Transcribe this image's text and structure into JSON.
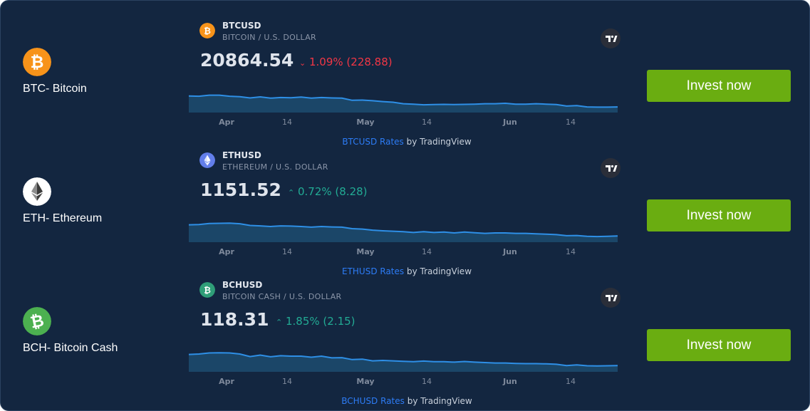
{
  "rows": [
    {
      "coin_label": "BTC- Bitcoin",
      "coin_icon": "bitcoin-icon",
      "symbol": "BTCUSD",
      "description": "BITCOIN / U.S. DOLLAR",
      "price": "20864.54",
      "change_arrow": "⌄",
      "change": "1.09% (228.88)",
      "direction": "down",
      "attr_link": "BTCUSD Rates",
      "attr_text": " by TradingView",
      "button": "Invest now",
      "axis_labels": [
        "Apr",
        "14",
        "May",
        "14",
        "Jun",
        "14"
      ],
      "trend": [
        0.46,
        0.47,
        0.42,
        0.42,
        0.47,
        0.49,
        0.55,
        0.5,
        0.56,
        0.53,
        0.54,
        0.51,
        0.56,
        0.53,
        0.55,
        0.56,
        0.66,
        0.65,
        0.68,
        0.72,
        0.75,
        0.82,
        0.84,
        0.87,
        0.86,
        0.85,
        0.86,
        0.85,
        0.84,
        0.82,
        0.82,
        0.8,
        0.84,
        0.84,
        0.82,
        0.84,
        0.86,
        0.93,
        0.91,
        0.97,
        0.98,
        0.98,
        0.97
      ]
    },
    {
      "coin_label": "ETH- Ethereum",
      "coin_icon": "ethereum-icon",
      "symbol": "ETHUSD",
      "description": "ETHEREUM / U.S. DOLLAR",
      "price": "1151.52",
      "change_arrow": "⌃",
      "change": "0.72% (8.28)",
      "direction": "up",
      "attr_link": "ETHUSD Rates",
      "attr_text": " by TradingView",
      "button": "Invest now",
      "axis_labels": [
        "Apr",
        "14",
        "May",
        "14",
        "Jun",
        "14"
      ],
      "trend": [
        0.42,
        0.41,
        0.36,
        0.35,
        0.34,
        0.37,
        0.45,
        0.47,
        0.5,
        0.47,
        0.48,
        0.5,
        0.53,
        0.5,
        0.52,
        0.53,
        0.6,
        0.62,
        0.67,
        0.7,
        0.72,
        0.74,
        0.78,
        0.74,
        0.78,
        0.76,
        0.8,
        0.76,
        0.79,
        0.82,
        0.8,
        0.8,
        0.82,
        0.82,
        0.84,
        0.86,
        0.88,
        0.93,
        0.92,
        0.96,
        0.97,
        0.96,
        0.94
      ]
    },
    {
      "coin_label": "BCH- Bitcoin Cash",
      "coin_icon": "bitcoin-cash-icon",
      "symbol": "BCHUSD",
      "description": "BITCOIN CASH / U.S. DOLLAR",
      "price": "118.31",
      "change_arrow": "⌃",
      "change": "1.85% (2.15)",
      "direction": "up",
      "attr_link": "BCHUSD Rates",
      "attr_text": " by TradingView",
      "button": "Invest now",
      "axis_labels": [
        "Apr",
        "14",
        "May",
        "14",
        "Jun",
        "14"
      ],
      "trend": [
        0.42,
        0.4,
        0.35,
        0.34,
        0.35,
        0.4,
        0.52,
        0.45,
        0.53,
        0.48,
        0.5,
        0.5,
        0.55,
        0.5,
        0.58,
        0.57,
        0.66,
        0.64,
        0.72,
        0.7,
        0.72,
        0.74,
        0.76,
        0.73,
        0.76,
        0.76,
        0.78,
        0.75,
        0.78,
        0.8,
        0.82,
        0.82,
        0.84,
        0.85,
        0.85,
        0.86,
        0.88,
        0.94,
        0.91,
        0.95,
        0.96,
        0.95,
        0.94
      ]
    }
  ],
  "colors": {
    "background": "#132640",
    "button": "#6aad11",
    "up": "#22ab94",
    "down": "#f23645",
    "link": "#2d7cf6",
    "line": "#2e8fe6",
    "area": "#1b4668",
    "bitcoin": "#f7931a",
    "ethereum_bg": "#ffffff",
    "ethereum_widget": "#627eea",
    "bitcoin_cash": "#4cb050",
    "bch_widget": "#2f9e78"
  }
}
